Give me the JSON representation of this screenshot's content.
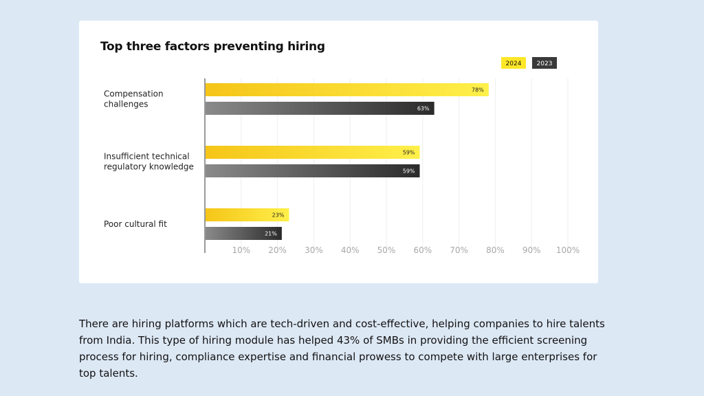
{
  "chart_data": {
    "type": "bar",
    "orientation": "horizontal",
    "title": "Top three factors preventing hiring",
    "categories": [
      [
        "Compensation",
        "challenges"
      ],
      [
        "Insufficient technical",
        "regulatory knowledge"
      ],
      [
        "Poor cultural fit"
      ]
    ],
    "series": [
      {
        "name": "2024",
        "values": [
          78,
          59,
          23
        ],
        "labels": [
          "78%",
          "59%",
          "23%"
        ],
        "color_start": "#f5c518",
        "color_end": "#fff04a",
        "legend_bg": "#fde728",
        "legend_fg": "#111111",
        "label_color": "#222222"
      },
      {
        "name": "2023",
        "values": [
          63,
          59,
          21
        ],
        "labels": [
          "63%",
          "59%",
          "21%"
        ],
        "color_start": "#8a8a8a",
        "color_end": "#2b2b2b",
        "legend_bg": "#3a3a3a",
        "legend_fg": "#ffffff",
        "label_color": "#ffffff"
      }
    ],
    "xlim": [
      0,
      100
    ],
    "xticks": [
      "10%",
      "20%",
      "30%",
      "40%",
      "50%",
      "60%",
      "70%",
      "80%",
      "90%",
      "100%"
    ],
    "grid": true,
    "legend_position": "top-right"
  },
  "caption": "There are hiring platforms which are tech-driven and cost-effective, helping companies to hire talents from India. This type of hiring module has helped 43% of SMBs in providing the efficient screening process for hiring, compliance expertise and financial prowess to compete with large enterprises for top talents."
}
